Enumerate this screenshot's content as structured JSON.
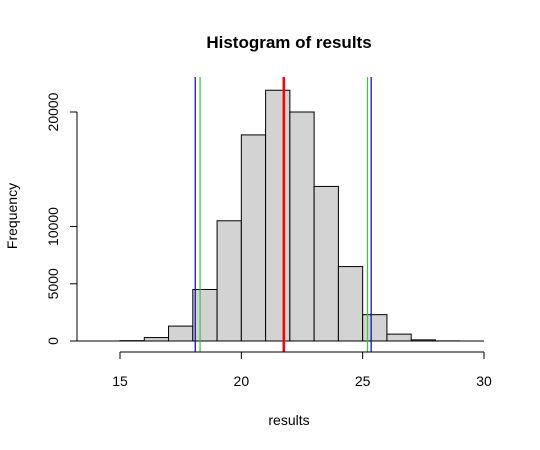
{
  "chart_data": {
    "type": "histogram",
    "title": "Histogram of results",
    "xlabel": "results",
    "ylabel": "Frequency",
    "xlim": [
      14,
      30
    ],
    "ylim": [
      0,
      22000
    ],
    "x_ticks": [
      15,
      20,
      25,
      30
    ],
    "y_ticks": [
      0,
      5000,
      10000,
      20000
    ],
    "bin_width": 1,
    "bins": [
      {
        "start": 14,
        "end": 15,
        "count": 0
      },
      {
        "start": 15,
        "end": 16,
        "count": 30
      },
      {
        "start": 16,
        "end": 17,
        "count": 300
      },
      {
        "start": 17,
        "end": 18,
        "count": 1300
      },
      {
        "start": 18,
        "end": 19,
        "count": 4500
      },
      {
        "start": 19,
        "end": 20,
        "count": 10500
      },
      {
        "start": 20,
        "end": 21,
        "count": 18000
      },
      {
        "start": 21,
        "end": 22,
        "count": 21900
      },
      {
        "start": 22,
        "end": 23,
        "count": 20000
      },
      {
        "start": 23,
        "end": 24,
        "count": 13500
      },
      {
        "start": 24,
        "end": 25,
        "count": 6500
      },
      {
        "start": 25,
        "end": 26,
        "count": 2300
      },
      {
        "start": 26,
        "end": 27,
        "count": 600
      },
      {
        "start": 27,
        "end": 28,
        "count": 100
      },
      {
        "start": 28,
        "end": 29,
        "count": 10
      },
      {
        "start": 29,
        "end": 30,
        "count": 0
      }
    ],
    "bar_fill": "#d3d3d3",
    "bar_stroke": "#000000",
    "vlines": [
      {
        "x": 18.1,
        "color": "#0000cc"
      },
      {
        "x": 18.3,
        "color": "#33cc33"
      },
      {
        "x": 21.75,
        "color": "#ff0000"
      },
      {
        "x": 25.2,
        "color": "#33cc33"
      },
      {
        "x": 25.35,
        "color": "#0000cc"
      }
    ]
  }
}
